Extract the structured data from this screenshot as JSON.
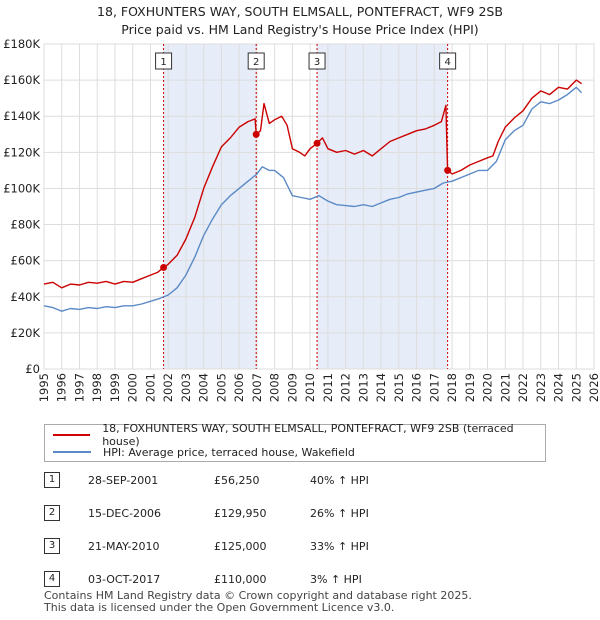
{
  "header": {
    "title_line1": "18, FOXHUNTERS WAY, SOUTH ELMSALL, PONTEFRACT, WF9 2SB",
    "title_line2": "Price paid vs. HM Land Registry's House Price Index (HPI)"
  },
  "colors": {
    "property_line": "#cc0000",
    "hpi_line": "#5b8ac6",
    "shade": "#e6ecf8",
    "grid": "#dddddd",
    "marker_line": "#cc0000"
  },
  "chart_data": {
    "type": "line",
    "title": "Price paid vs. HM Land Registry's House Price Index (HPI)",
    "xlabel": "",
    "ylabel": "",
    "xlim": [
      1995,
      2026
    ],
    "ylim": [
      0,
      180000
    ],
    "yticks": [
      {
        "value": 0,
        "label": "£0"
      },
      {
        "value": 20000,
        "label": "£20K"
      },
      {
        "value": 40000,
        "label": "£40K"
      },
      {
        "value": 60000,
        "label": "£60K"
      },
      {
        "value": 80000,
        "label": "£80K"
      },
      {
        "value": 100000,
        "label": "£100K"
      },
      {
        "value": 120000,
        "label": "£120K"
      },
      {
        "value": 140000,
        "label": "£140K"
      },
      {
        "value": 160000,
        "label": "£160K"
      },
      {
        "value": 180000,
        "label": "£180K"
      }
    ],
    "xticks": [
      "1995",
      "1996",
      "1997",
      "1998",
      "1999",
      "2000",
      "2001",
      "2002",
      "2003",
      "2004",
      "2005",
      "2006",
      "2007",
      "2008",
      "2009",
      "2010",
      "2011",
      "2012",
      "2013",
      "2014",
      "2015",
      "2016",
      "2017",
      "2018",
      "2019",
      "2020",
      "2021",
      "2022",
      "2023",
      "2024",
      "2025",
      "2026"
    ],
    "shaded_ranges": [
      [
        2001.74,
        2006.96
      ],
      [
        2010.39,
        2017.75
      ]
    ],
    "markers": [
      {
        "label": "1",
        "x": 2001.74,
        "y": 56250
      },
      {
        "label": "2",
        "x": 2006.96,
        "y": 129950
      },
      {
        "label": "3",
        "x": 2010.39,
        "y": 125000
      },
      {
        "label": "4",
        "x": 2017.75,
        "y": 110000
      }
    ],
    "series": [
      {
        "name": "18, FOXHUNTERS WAY, SOUTH ELMSALL, PONTEFRACT, WF9 2SB (terraced house)",
        "color": "#cc0000",
        "points": [
          [
            1995,
            47000
          ],
          [
            1995.5,
            48000
          ],
          [
            1996,
            45000
          ],
          [
            1996.5,
            47000
          ],
          [
            1997,
            46500
          ],
          [
            1997.5,
            48000
          ],
          [
            1998,
            47500
          ],
          [
            1998.5,
            48500
          ],
          [
            1999,
            47000
          ],
          [
            1999.5,
            48500
          ],
          [
            2000,
            48000
          ],
          [
            2000.5,
            50000
          ],
          [
            2001,
            52000
          ],
          [
            2001.4,
            53500
          ],
          [
            2001.74,
            56250
          ],
          [
            2002,
            58000
          ],
          [
            2002.5,
            63000
          ],
          [
            2003,
            72000
          ],
          [
            2003.5,
            84000
          ],
          [
            2004,
            100000
          ],
          [
            2004.5,
            112000
          ],
          [
            2005,
            123000
          ],
          [
            2005.5,
            128000
          ],
          [
            2006,
            134000
          ],
          [
            2006.5,
            137000
          ],
          [
            2006.9,
            138500
          ],
          [
            2006.96,
            129950
          ],
          [
            2007.2,
            132000
          ],
          [
            2007.4,
            147000
          ],
          [
            2007.7,
            136000
          ],
          [
            2008,
            138000
          ],
          [
            2008.4,
            140000
          ],
          [
            2008.7,
            135000
          ],
          [
            2009,
            122000
          ],
          [
            2009.4,
            120000
          ],
          [
            2009.7,
            118000
          ],
          [
            2010,
            122000
          ],
          [
            2010.39,
            125000
          ],
          [
            2010.7,
            128000
          ],
          [
            2011,
            122000
          ],
          [
            2011.5,
            120000
          ],
          [
            2012,
            121000
          ],
          [
            2012.5,
            119000
          ],
          [
            2013,
            121000
          ],
          [
            2013.5,
            118000
          ],
          [
            2014,
            122000
          ],
          [
            2014.5,
            126000
          ],
          [
            2015,
            128000
          ],
          [
            2015.5,
            130000
          ],
          [
            2016,
            132000
          ],
          [
            2016.5,
            133000
          ],
          [
            2017,
            135000
          ],
          [
            2017.4,
            137000
          ],
          [
            2017.65,
            146000
          ],
          [
            2017.75,
            110000
          ],
          [
            2018,
            108000
          ],
          [
            2018.5,
            110000
          ],
          [
            2019,
            113000
          ],
          [
            2019.5,
            115000
          ],
          [
            2020,
            117000
          ],
          [
            2020.3,
            118000
          ],
          [
            2020.6,
            126000
          ],
          [
            2021,
            134000
          ],
          [
            2021.5,
            139000
          ],
          [
            2022,
            143000
          ],
          [
            2022.5,
            150000
          ],
          [
            2023,
            154000
          ],
          [
            2023.5,
            152000
          ],
          [
            2024,
            156000
          ],
          [
            2024.5,
            155000
          ],
          [
            2025,
            160000
          ],
          [
            2025.3,
            158000
          ]
        ]
      },
      {
        "name": "HPI: Average price, terraced house, Wakefield",
        "color": "#5b8ac6",
        "points": [
          [
            1995,
            35000
          ],
          [
            1995.5,
            34000
          ],
          [
            1996,
            32000
          ],
          [
            1996.5,
            33500
          ],
          [
            1997,
            33000
          ],
          [
            1997.5,
            34000
          ],
          [
            1998,
            33500
          ],
          [
            1998.5,
            34500
          ],
          [
            1999,
            34000
          ],
          [
            1999.5,
            35000
          ],
          [
            2000,
            35000
          ],
          [
            2000.5,
            36000
          ],
          [
            2001,
            37500
          ],
          [
            2001.5,
            39000
          ],
          [
            2002,
            41000
          ],
          [
            2002.5,
            45000
          ],
          [
            2003,
            52000
          ],
          [
            2003.5,
            62000
          ],
          [
            2004,
            74000
          ],
          [
            2004.5,
            83000
          ],
          [
            2005,
            91000
          ],
          [
            2005.5,
            96000
          ],
          [
            2006,
            100000
          ],
          [
            2006.5,
            104000
          ],
          [
            2007,
            108000
          ],
          [
            2007.3,
            112000
          ],
          [
            2007.7,
            110000
          ],
          [
            2008,
            110000
          ],
          [
            2008.5,
            106000
          ],
          [
            2009,
            96000
          ],
          [
            2009.5,
            95000
          ],
          [
            2010,
            94000
          ],
          [
            2010.5,
            96000
          ],
          [
            2011,
            93000
          ],
          [
            2011.5,
            91000
          ],
          [
            2012,
            90500
          ],
          [
            2012.5,
            90000
          ],
          [
            2013,
            91000
          ],
          [
            2013.5,
            90000
          ],
          [
            2014,
            92000
          ],
          [
            2014.5,
            94000
          ],
          [
            2015,
            95000
          ],
          [
            2015.5,
            97000
          ],
          [
            2016,
            98000
          ],
          [
            2016.5,
            99000
          ],
          [
            2017,
            100000
          ],
          [
            2017.5,
            103000
          ],
          [
            2018,
            104000
          ],
          [
            2018.5,
            106000
          ],
          [
            2019,
            108000
          ],
          [
            2019.5,
            110000
          ],
          [
            2020,
            110000
          ],
          [
            2020.5,
            115000
          ],
          [
            2021,
            127000
          ],
          [
            2021.5,
            132000
          ],
          [
            2022,
            135000
          ],
          [
            2022.5,
            144000
          ],
          [
            2023,
            148000
          ],
          [
            2023.5,
            147000
          ],
          [
            2024,
            149000
          ],
          [
            2024.5,
            152000
          ],
          [
            2025,
            156000
          ],
          [
            2025.3,
            153000
          ]
        ]
      }
    ]
  },
  "legend": {
    "items": [
      {
        "label": "18, FOXHUNTERS WAY, SOUTH ELMSALL, PONTEFRACT, WF9 2SB (terraced house)"
      },
      {
        "label": "HPI: Average price, terraced house, Wakefield"
      }
    ]
  },
  "sales": [
    {
      "num": "1",
      "date": "28-SEP-2001",
      "price": "£56,250",
      "hpi": "40% ↑ HPI"
    },
    {
      "num": "2",
      "date": "15-DEC-2006",
      "price": "£129,950",
      "hpi": "26% ↑ HPI"
    },
    {
      "num": "3",
      "date": "21-MAY-2010",
      "price": "£125,000",
      "hpi": "33% ↑ HPI"
    },
    {
      "num": "4",
      "date": "03-OCT-2017",
      "price": "£110,000",
      "hpi": "3% ↑ HPI"
    }
  ],
  "footer": {
    "line1": "Contains HM Land Registry data © Crown copyright and database right 2025.",
    "line2": "This data is licensed under the Open Government Licence v3.0."
  }
}
